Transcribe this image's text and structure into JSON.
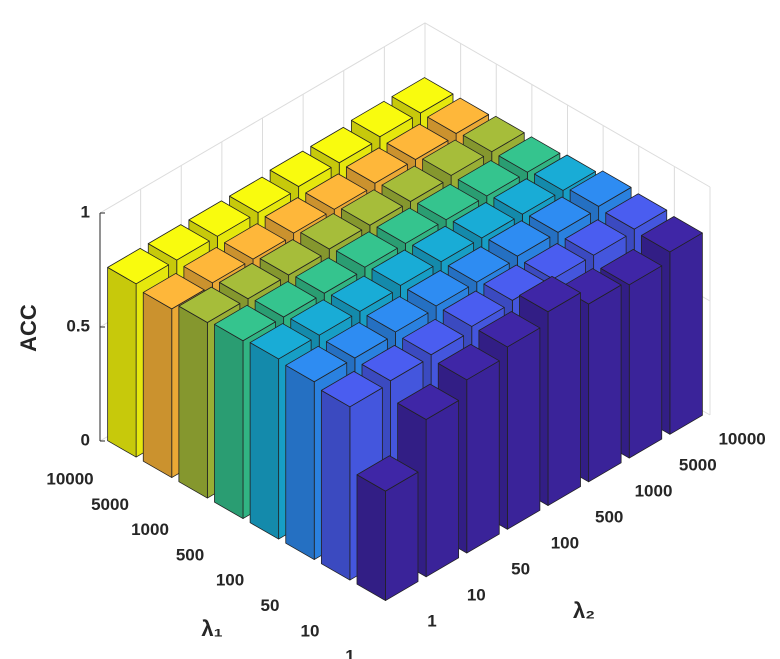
{
  "chart_data": {
    "type": "bar3d",
    "z_label": "ACC",
    "y_label": "λ₁",
    "x_label": "λ₂",
    "y_categories": [
      "10000",
      "5000",
      "1000",
      "500",
      "100",
      "50",
      "10",
      "1"
    ],
    "x_categories": [
      "1",
      "10",
      "50",
      "100",
      "500",
      "1000",
      "5000",
      "10000"
    ],
    "series": [
      {
        "color": "#f9fb0e",
        "values": [
          0.76,
          0.76,
          0.76,
          0.76,
          0.77,
          0.77,
          0.78,
          0.78
        ]
      },
      {
        "color": "#feb73a",
        "values": [
          0.74,
          0.75,
          0.75,
          0.76,
          0.76,
          0.77,
          0.77,
          0.78
        ]
      },
      {
        "color": "#a6bd3a",
        "values": [
          0.77,
          0.77,
          0.77,
          0.78,
          0.78,
          0.78,
          0.79,
          0.79
        ]
      },
      {
        "color": "#35c48e",
        "values": [
          0.78,
          0.78,
          0.78,
          0.79,
          0.79,
          0.79,
          0.79,
          0.79
        ]
      },
      {
        "color": "#19acd6",
        "values": [
          0.79,
          0.79,
          0.79,
          0.8,
          0.8,
          0.8,
          0.8,
          0.8
        ]
      },
      {
        "color": "#2e8cf2",
        "values": [
          0.78,
          0.78,
          0.79,
          0.8,
          0.8,
          0.81,
          0.81,
          0.82
        ]
      },
      {
        "color": "#4a5df0",
        "values": [
          0.76,
          0.77,
          0.78,
          0.8,
          0.81,
          0.8,
          0.8,
          0.81
        ]
      },
      {
        "color": "#3f26a6",
        "values": [
          0.48,
          0.69,
          0.76,
          0.8,
          0.85,
          0.78,
          0.76,
          0.8
        ]
      }
    ],
    "zlim": [
      0,
      1
    ],
    "zticks": [
      0,
      0.5,
      1
    ],
    "grid": true
  }
}
